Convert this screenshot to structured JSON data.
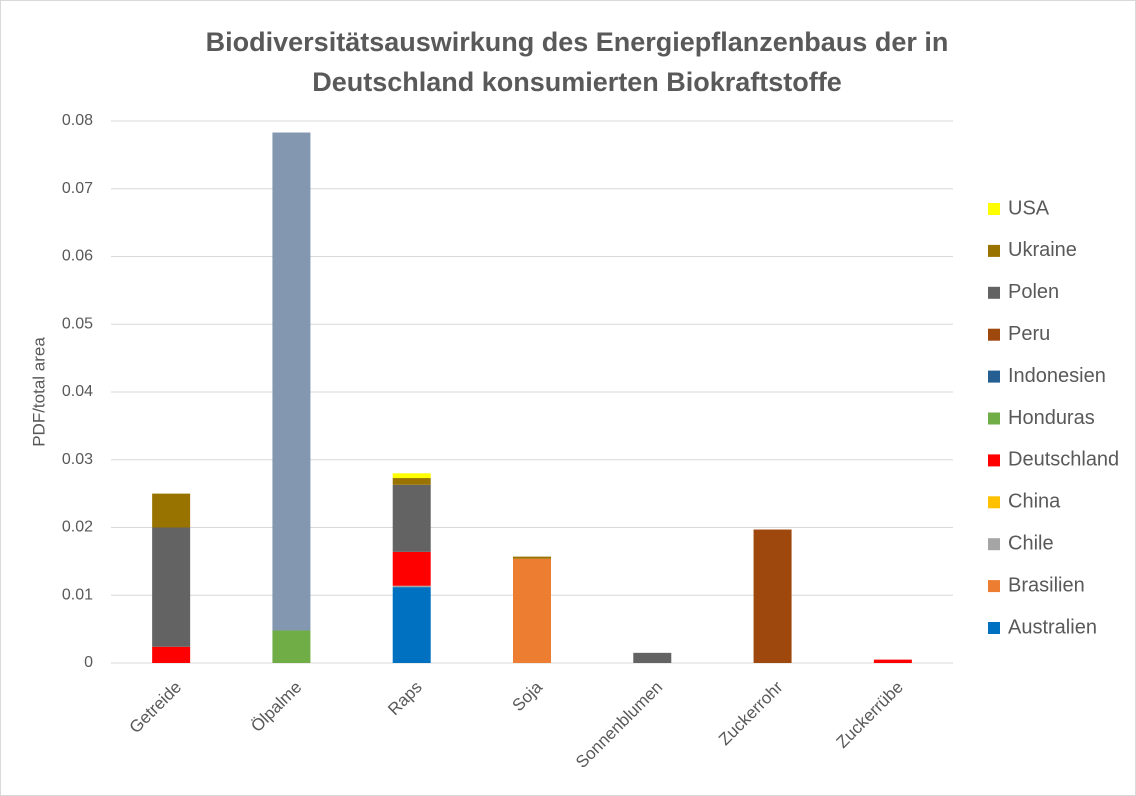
{
  "chart_data": {
    "type": "stacked_bar",
    "title": [
      "Biodiversitätsauswirkung des Energiepflanzenbaus der in",
      "Deutschland konsumierten Biokraftstoffe"
    ],
    "y_label": "PDF/total area",
    "categories": [
      "Getreide",
      "Ölpalme",
      "Raps",
      "Soja",
      "Sonnenblumen",
      "Zuckerrohr",
      "Zuckerrübe"
    ],
    "ylim": [
      0,
      0.08
    ],
    "yticks": [
      0,
      0.01,
      0.02,
      0.03,
      0.04,
      0.05,
      0.06,
      0.07,
      0.08
    ],
    "grid": true,
    "legend": "right",
    "series": [
      {
        "name": "Australien",
        "color": "#0070c0",
        "values": [
          0,
          0,
          0.0112,
          0,
          0,
          0,
          0
        ]
      },
      {
        "name": "Brasilien",
        "color": "#ed7d31",
        "values": [
          0,
          0,
          0,
          0.0154,
          0,
          0,
          0
        ]
      },
      {
        "name": "Chile",
        "color": "#a5a5a5",
        "values": [
          0,
          0,
          0.0002,
          0,
          0,
          0,
          0
        ]
      },
      {
        "name": "China",
        "color": "#ffc000",
        "values": [
          0,
          0,
          0,
          0,
          0,
          0,
          0
        ]
      },
      {
        "name": "Deutschland",
        "color": "#ff0000",
        "values": [
          0.0024,
          0,
          0.005,
          0,
          0,
          0,
          0.0005
        ]
      },
      {
        "name": "Honduras",
        "color": "#70ad47",
        "values": [
          0,
          0.0048,
          0,
          0,
          0,
          0,
          0
        ]
      },
      {
        "name": "Indonesien",
        "color": "#255e91",
        "value_colors": [
          null,
          "#8497b0",
          null,
          null,
          null,
          null,
          null
        ],
        "values": [
          0,
          0.0735,
          0,
          0,
          0,
          0,
          0
        ]
      },
      {
        "name": "Peru",
        "color": "#9e480e",
        "values": [
          0,
          0,
          0,
          0,
          0,
          0.0197,
          0
        ]
      },
      {
        "name": "Polen",
        "color": "#636363",
        "values": [
          0.0176,
          0,
          0.0099,
          0,
          0.0015,
          0,
          0
        ]
      },
      {
        "name": "Ukraine",
        "color": "#997300",
        "values": [
          0.005,
          0,
          0.001,
          0.0003,
          0,
          0,
          0
        ]
      },
      {
        "name": "USA",
        "color": "#ffff00",
        "values": [
          0,
          0,
          0.0007,
          0,
          0,
          0,
          0
        ]
      }
    ]
  }
}
